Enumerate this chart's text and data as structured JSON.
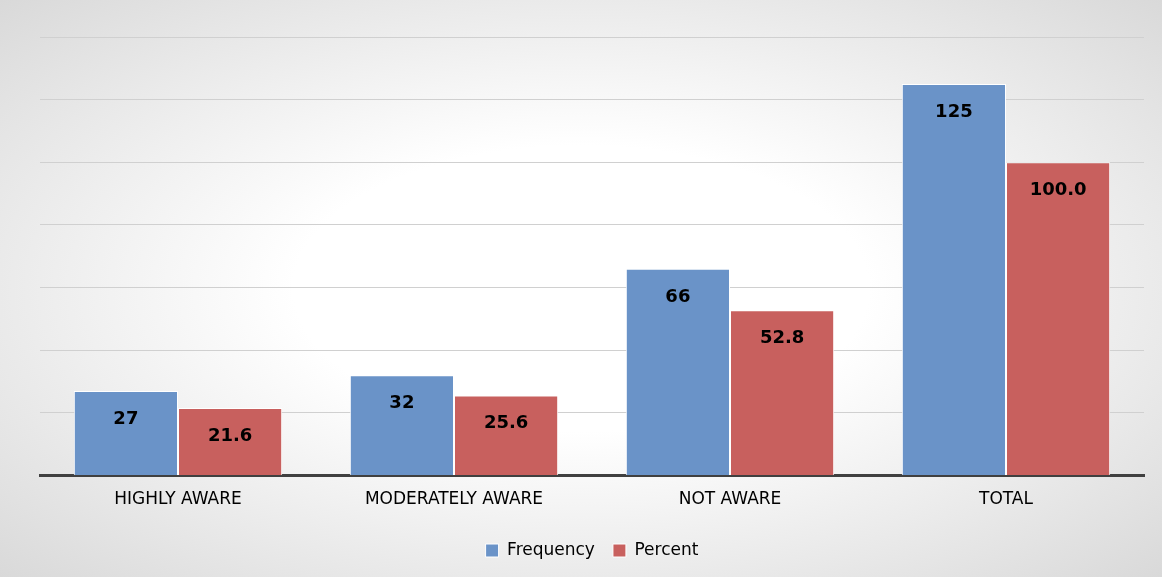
{
  "chart_data": {
    "type": "bar",
    "categories": [
      "HIGHLY AWARE",
      "MODERATELY AWARE",
      "NOT AWARE",
      "TOTAL"
    ],
    "series": [
      {
        "name": "Frequency",
        "color": "#6a93c8",
        "values": [
          27,
          32,
          66,
          125
        ]
      },
      {
        "name": "Percent",
        "color": "#c8605e",
        "values": [
          21.6,
          25.6,
          52.8,
          100.0
        ],
        "value_labels": [
          "21.6",
          "25.6",
          "52.8",
          "100.0"
        ]
      }
    ],
    "ylim": [
      0,
      140
    ],
    "tick_labels": "x",
    "grid": "y",
    "legend": "bottom",
    "data_labels": true
  }
}
